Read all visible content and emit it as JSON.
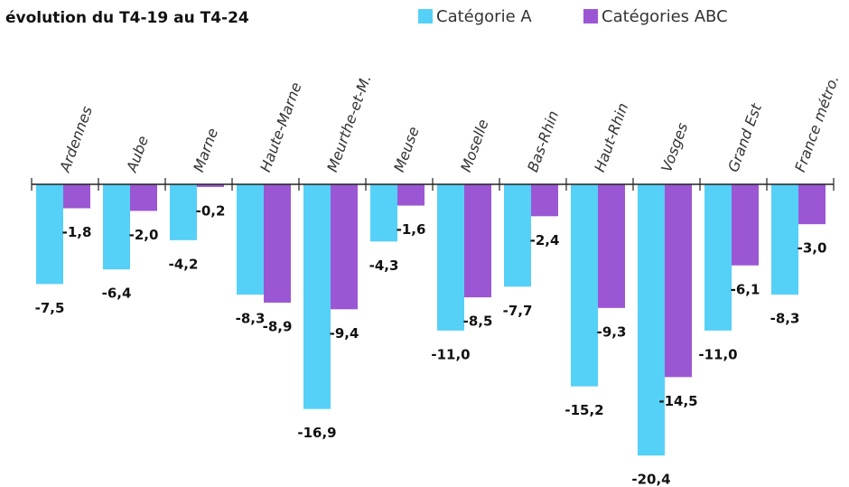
{
  "chart_data": {
    "type": "bar",
    "title": "évolution du T4-19 au T4-24",
    "categories": [
      "Ardennes",
      "Aube",
      "Marne",
      "Haute-Marne",
      "Meurthe-et-M.",
      "Meuse",
      "Moselle",
      "Bas-Rhin",
      "Haut-Rhin",
      "Vosges",
      "Grand Est",
      "France métro."
    ],
    "series": [
      {
        "name": "Catégorie A",
        "color": "#55d0f7",
        "values": [
          -7.5,
          -6.4,
          -4.2,
          -8.3,
          -16.9,
          -4.3,
          -11.0,
          -7.7,
          -15.2,
          -20.4,
          -11.0,
          -8.3
        ],
        "value_labels": [
          "-7,5",
          "-6,4",
          "-4,2",
          "-8,3",
          "-16,9",
          "-4,3",
          "-11,0",
          "-7,7",
          "-15,2",
          "-20,4",
          "-11,0",
          "-8,3"
        ]
      },
      {
        "name": "Catégories ABC",
        "color": "#9b57d3",
        "values": [
          -1.8,
          -2.0,
          -0.2,
          -8.9,
          -9.4,
          -1.6,
          -8.5,
          -2.4,
          -9.3,
          -14.5,
          -6.1,
          -3.0
        ],
        "value_labels": [
          "-1,8",
          "-2,0",
          "-0,2",
          "-8,9",
          "-9,4",
          "-1,6",
          "-8,5",
          "-2,4",
          "-9,3",
          "-14,5",
          "-6,1",
          "-3,0"
        ]
      }
    ],
    "ylim": [
      -21,
      0
    ]
  }
}
